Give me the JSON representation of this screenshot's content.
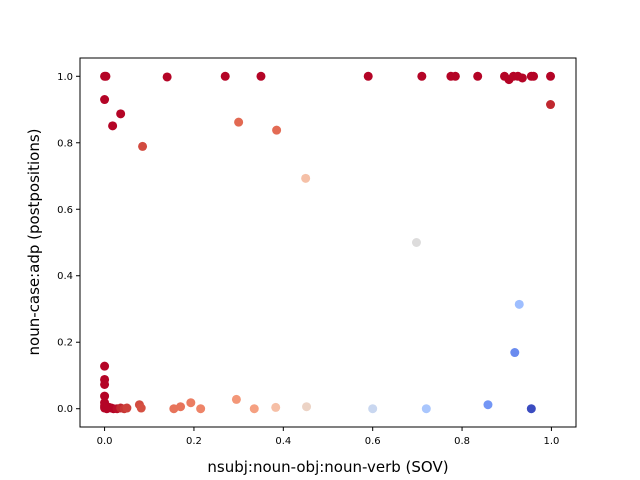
{
  "chart_data": {
    "type": "scatter",
    "title": "",
    "xlabel": "nsubj:noun-obj:noun-verb (SOV)",
    "ylabel": "noun-case:adp (postpositions)",
    "xlim": [
      -0.055,
      1.055
    ],
    "ylim": [
      -0.055,
      1.055
    ],
    "xticks": [
      0.0,
      0.2,
      0.4,
      0.6,
      0.8,
      1.0
    ],
    "yticks": [
      0.0,
      0.2,
      0.4,
      0.6,
      0.8,
      1.0
    ],
    "xtick_labels": [
      "0.0",
      "0.2",
      "0.4",
      "0.6",
      "0.8",
      "1.0"
    ],
    "ytick_labels": [
      "0.0",
      "0.2",
      "0.4",
      "0.6",
      "0.8",
      "1.0"
    ],
    "grid": false,
    "colormap": "coolwarm",
    "colors": {
      "deep_red": "#b40426",
      "red": "#d24b40",
      "salmon": "#e7745b",
      "light_salmon": "#f08b6e",
      "peach": "#f5c0a7",
      "pale": "#ecd3c5",
      "grey": "#dddcdc",
      "light_blue": "#c9d7f0",
      "blue": "#9ebeff",
      "mid_blue": "#6687ed",
      "dark_blue": "#3b4cc0"
    },
    "points": [
      {
        "x": 0.0,
        "y": 1.0,
        "color": "#b40426"
      },
      {
        "x": 0.003,
        "y": 1.0,
        "color": "#b40426"
      },
      {
        "x": 0.14,
        "y": 0.998,
        "color": "#b40426"
      },
      {
        "x": 0.27,
        "y": 1.0,
        "color": "#b40426"
      },
      {
        "x": 0.35,
        "y": 1.0,
        "color": "#b40426"
      },
      {
        "x": 0.59,
        "y": 1.0,
        "color": "#b40426"
      },
      {
        "x": 0.71,
        "y": 1.0,
        "color": "#b40426"
      },
      {
        "x": 0.775,
        "y": 1.0,
        "color": "#b40426"
      },
      {
        "x": 0.785,
        "y": 1.0,
        "color": "#b40426"
      },
      {
        "x": 0.835,
        "y": 1.0,
        "color": "#b40426"
      },
      {
        "x": 0.895,
        "y": 1.0,
        "color": "#b40426"
      },
      {
        "x": 0.905,
        "y": 0.99,
        "color": "#b40426"
      },
      {
        "x": 0.915,
        "y": 1.0,
        "color": "#b40426"
      },
      {
        "x": 0.925,
        "y": 1.0,
        "color": "#b40426"
      },
      {
        "x": 0.935,
        "y": 0.995,
        "color": "#b40426"
      },
      {
        "x": 0.955,
        "y": 1.0,
        "color": "#b40426"
      },
      {
        "x": 0.96,
        "y": 1.0,
        "color": "#b40426"
      },
      {
        "x": 0.998,
        "y": 1.0,
        "color": "#b40426"
      },
      {
        "x": 0.0,
        "y": 0.93,
        "color": "#b40426"
      },
      {
        "x": 0.036,
        "y": 0.887,
        "color": "#b40426"
      },
      {
        "x": 0.018,
        "y": 0.851,
        "color": "#b40426"
      },
      {
        "x": 0.998,
        "y": 0.915,
        "color": "#c0282f"
      },
      {
        "x": 0.085,
        "y": 0.789,
        "color": "#d24b40"
      },
      {
        "x": 0.3,
        "y": 0.862,
        "color": "#e26952"
      },
      {
        "x": 0.385,
        "y": 0.838,
        "color": "#e36b54"
      },
      {
        "x": 0.45,
        "y": 0.693,
        "color": "#f5c0a7"
      },
      {
        "x": 0.698,
        "y": 0.5,
        "color": "#dddcdc"
      },
      {
        "x": 0.928,
        "y": 0.314,
        "color": "#9ebeff"
      },
      {
        "x": 0.918,
        "y": 0.169,
        "color": "#6a8bef"
      },
      {
        "x": 0.0,
        "y": 0.128,
        "color": "#b40426"
      },
      {
        "x": 0.0,
        "y": 0.088,
        "color": "#b40426"
      },
      {
        "x": 0.0,
        "y": 0.073,
        "color": "#b40426"
      },
      {
        "x": 0.0,
        "y": 0.038,
        "color": "#b40426"
      },
      {
        "x": 0.0,
        "y": 0.018,
        "color": "#b40426"
      },
      {
        "x": 0.0,
        "y": 0.008,
        "color": "#b40426"
      },
      {
        "x": 0.0,
        "y": 0.002,
        "color": "#b40426"
      },
      {
        "x": 0.005,
        "y": 0.0,
        "color": "#b40426"
      },
      {
        "x": 0.01,
        "y": 0.004,
        "color": "#b40426"
      },
      {
        "x": 0.015,
        "y": 0.002,
        "color": "#b40426"
      },
      {
        "x": 0.02,
        "y": 0.0,
        "color": "#b40426"
      },
      {
        "x": 0.028,
        "y": 0.0,
        "color": "#b90d29"
      },
      {
        "x": 0.036,
        "y": 0.002,
        "color": "#c0282f"
      },
      {
        "x": 0.044,
        "y": 0.0,
        "color": "#c73635"
      },
      {
        "x": 0.05,
        "y": 0.002,
        "color": "#cc403a"
      },
      {
        "x": 0.078,
        "y": 0.012,
        "color": "#d24b40"
      },
      {
        "x": 0.082,
        "y": 0.002,
        "color": "#d55042"
      },
      {
        "x": 0.155,
        "y": 0.0,
        "color": "#e7745b"
      },
      {
        "x": 0.17,
        "y": 0.006,
        "color": "#e7745b"
      },
      {
        "x": 0.193,
        "y": 0.018,
        "color": "#eb7d62"
      },
      {
        "x": 0.215,
        "y": 0.0,
        "color": "#ee8468"
      },
      {
        "x": 0.295,
        "y": 0.028,
        "color": "#f39778"
      },
      {
        "x": 0.335,
        "y": 0.0,
        "color": "#f5a081"
      },
      {
        "x": 0.383,
        "y": 0.004,
        "color": "#f6bfa6"
      },
      {
        "x": 0.452,
        "y": 0.006,
        "color": "#ecd3c5"
      },
      {
        "x": 0.6,
        "y": 0.0,
        "color": "#c9d7f0"
      },
      {
        "x": 0.72,
        "y": 0.0,
        "color": "#a9c6fd"
      },
      {
        "x": 0.858,
        "y": 0.012,
        "color": "#7396f5"
      },
      {
        "x": 0.955,
        "y": 0.0,
        "color": "#3b4cc0"
      }
    ]
  }
}
